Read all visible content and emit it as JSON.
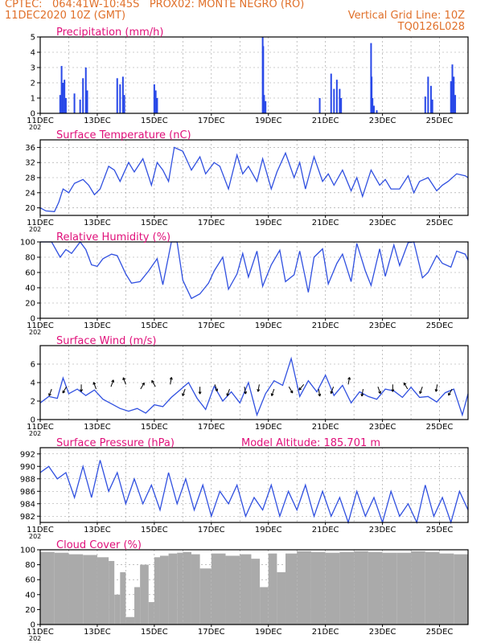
{
  "header": {
    "line1_left": "CPTEC:",
    "coords": "064:41W-10:45S",
    "station": "PROX02: MONTE NEGRO (RO)",
    "line2_left": "11DEC2020 10Z (GMT)",
    "grid_note": "Vertical Grid Line: 10Z",
    "run_id": "TQ0126L028",
    "year_fragment": "202"
  },
  "x_ticks": [
    "11DEC",
    "13DEC",
    "15DEC",
    "17DEC",
    "19DEC",
    "21DEC",
    "23DEC",
    "25DEC"
  ],
  "colors": {
    "line": "#3050e0",
    "bars": "#2848e8",
    "cloud": "#aaaaaa",
    "title": "#e0107a",
    "header": "#e0702a",
    "grid": "#999999"
  },
  "chart_data": [
    {
      "type": "bar",
      "title": "Precipitation (mm/h)",
      "ylim": [
        0,
        5
      ],
      "yticks": [
        "0",
        "1",
        "2",
        "3",
        "4",
        "5"
      ],
      "x": [
        0.7,
        0.75,
        0.8,
        0.85,
        0.9,
        1.2,
        1.4,
        1.5,
        1.6,
        1.65,
        2.7,
        2.8,
        2.9,
        2.95,
        4.0,
        4.05,
        4.1,
        7.8,
        7.82,
        7.85,
        7.9,
        9.8,
        10.2,
        10.3,
        10.4,
        10.5,
        10.55,
        11.6,
        11.62,
        11.65,
        11.7,
        11.8,
        13.5,
        13.6,
        13.7,
        13.75,
        14.4,
        14.45,
        14.5,
        14.55
      ],
      "values": [
        1.2,
        3.1,
        2.0,
        2.2,
        1.0,
        1.3,
        0.9,
        2.3,
        3.0,
        1.5,
        2.3,
        1.9,
        2.4,
        1.2,
        1.9,
        1.5,
        1.0,
        5.0,
        4.4,
        1.2,
        0.8,
        1.0,
        2.6,
        1.6,
        2.2,
        1.6,
        1.0,
        4.6,
        2.4,
        1.0,
        0.5,
        0.2,
        1.1,
        2.4,
        1.8,
        0.9,
        2.1,
        3.2,
        2.4,
        1.2
      ]
    },
    {
      "type": "line",
      "title": "Surface Temperature (nC)",
      "ylim": [
        18,
        38
      ],
      "yticks": [
        "20",
        "24",
        "28",
        "32",
        "36"
      ],
      "x": [
        0,
        0.2,
        0.5,
        0.65,
        0.8,
        1.0,
        1.2,
        1.5,
        1.7,
        1.9,
        2.1,
        2.4,
        2.6,
        2.8,
        3.1,
        3.3,
        3.6,
        3.9,
        4.1,
        4.3,
        4.5,
        4.7,
        5.0,
        5.3,
        5.6,
        5.8,
        6.1,
        6.3,
        6.6,
        6.9,
        7.1,
        7.3,
        7.6,
        7.8,
        8.1,
        8.3,
        8.6,
        8.9,
        9.1,
        9.3,
        9.6,
        9.9,
        10.1,
        10.3,
        10.6,
        10.9,
        11.1,
        11.3,
        11.6,
        11.9,
        12.1,
        12.3,
        12.6,
        12.9,
        13.1,
        13.3,
        13.6,
        13.9,
        14.1,
        14.3,
        14.6,
        14.9,
        15.0
      ],
      "values": [
        20,
        19.2,
        19,
        21.5,
        25,
        24,
        26.5,
        27.5,
        26,
        23.5,
        25,
        31,
        30,
        27,
        32,
        29.5,
        33,
        26,
        32,
        30,
        27,
        36,
        35,
        30,
        33.5,
        29,
        32,
        31,
        25,
        34,
        29,
        31,
        27,
        33,
        25,
        29.5,
        34.5,
        28,
        32,
        25,
        33.5,
        27,
        29,
        26,
        30,
        24.5,
        28,
        23,
        30,
        26,
        27.5,
        25,
        25,
        28.5,
        24,
        27,
        28,
        24.5,
        26,
        27,
        29,
        28.5,
        28
      ]
    },
    {
      "type": "line",
      "title": "Relative Humidity (%)",
      "ylim": [
        0,
        100
      ],
      "yticks": [
        "0",
        "20",
        "40",
        "60",
        "80",
        "100"
      ],
      "x": [
        0,
        0.4,
        0.7,
        0.9,
        1.1,
        1.4,
        1.6,
        1.8,
        2.0,
        2.2,
        2.5,
        2.7,
        3.0,
        3.2,
        3.5,
        3.8,
        4.1,
        4.3,
        4.6,
        4.8,
        5.0,
        5.3,
        5.6,
        5.9,
        6.1,
        6.4,
        6.6,
        6.9,
        7.1,
        7.3,
        7.6,
        7.8,
        8.1,
        8.4,
        8.6,
        8.9,
        9.1,
        9.4,
        9.6,
        9.9,
        10.1,
        10.4,
        10.6,
        10.9,
        11.1,
        11.4,
        11.6,
        11.9,
        12.1,
        12.4,
        12.6,
        12.9,
        13.1,
        13.4,
        13.6,
        13.9,
        14.1,
        14.4,
        14.6,
        14.9,
        15.0
      ],
      "values": [
        100,
        100,
        80,
        90,
        85,
        100,
        90,
        70,
        68,
        78,
        84,
        82,
        58,
        46,
        48,
        62,
        78,
        44,
        100,
        100,
        50,
        26,
        32,
        46,
        62,
        80,
        38,
        58,
        85,
        54,
        88,
        42,
        70,
        89,
        48,
        57,
        88,
        34,
        80,
        91,
        45,
        72,
        84,
        48,
        98,
        62,
        43,
        91,
        55,
        96,
        69,
        99,
        100,
        53,
        60,
        82,
        72,
        67,
        88,
        84,
        76
      ]
    },
    {
      "type": "line",
      "title": "Surface Wind (m/s)",
      "ylim": [
        0,
        8
      ],
      "yticks": [
        "0",
        "2",
        "4",
        "6"
      ],
      "x": [
        0,
        0.3,
        0.6,
        0.8,
        1.0,
        1.3,
        1.6,
        1.9,
        2.2,
        2.5,
        2.8,
        3.1,
        3.4,
        3.7,
        4.0,
        4.3,
        4.6,
        4.9,
        5.2,
        5.5,
        5.8,
        6.1,
        6.4,
        6.7,
        7.0,
        7.3,
        7.6,
        7.9,
        8.2,
        8.5,
        8.8,
        9.1,
        9.4,
        9.7,
        10.0,
        10.3,
        10.6,
        10.9,
        11.2,
        11.5,
        11.8,
        12.1,
        12.4,
        12.7,
        13.0,
        13.3,
        13.6,
        13.9,
        14.2,
        14.5,
        14.8,
        15.0
      ],
      "values": [
        1.8,
        2.5,
        2.3,
        4.5,
        2.8,
        3.3,
        2.6,
        3.2,
        2.2,
        1.7,
        1.2,
        0.9,
        1.2,
        0.7,
        1.6,
        1.4,
        2.4,
        3.2,
        4.0,
        2.3,
        1.1,
        3.6,
        2.0,
        3.0,
        1.8,
        4.0,
        0.5,
        2.8,
        4.2,
        3.7,
        6.6,
        2.5,
        4.2,
        3.0,
        4.8,
        2.6,
        3.7,
        1.8,
        3.0,
        2.5,
        2.2,
        3.3,
        3.1,
        2.4,
        3.5,
        2.4,
        2.5,
        1.9,
        2.9,
        3.3,
        0.5,
        2.8
      ]
    },
    {
      "type": "line",
      "title": "Surface Pressure (hPa)",
      "annotation": "Model Altitude: 185.701 m",
      "ylim": [
        981,
        993
      ],
      "yticks": [
        "982",
        "984",
        "986",
        "988",
        "990",
        "992"
      ],
      "x": [
        0,
        0.3,
        0.6,
        0.9,
        1.2,
        1.5,
        1.8,
        2.1,
        2.4,
        2.7,
        3.0,
        3.3,
        3.6,
        3.9,
        4.2,
        4.5,
        4.8,
        5.1,
        5.4,
        5.7,
        6.0,
        6.3,
        6.6,
        6.9,
        7.2,
        7.5,
        7.8,
        8.1,
        8.4,
        8.7,
        9.0,
        9.3,
        9.6,
        9.9,
        10.2,
        10.5,
        10.8,
        11.1,
        11.4,
        11.7,
        12.0,
        12.3,
        12.6,
        12.9,
        13.2,
        13.5,
        13.8,
        14.1,
        14.4,
        14.7,
        15.0
      ],
      "values": [
        989,
        990,
        988,
        989,
        985,
        990,
        985,
        991,
        986,
        989,
        984,
        988,
        984,
        987,
        983,
        989,
        984,
        988,
        983,
        987,
        982,
        986,
        984,
        987,
        982,
        985,
        983,
        987,
        982,
        986,
        983,
        987,
        982,
        986,
        982,
        985,
        981,
        986,
        982,
        985,
        981,
        986,
        982,
        984,
        981,
        987,
        982,
        985,
        981,
        986,
        983
      ]
    },
    {
      "type": "area",
      "title": "Cloud Cover (%)",
      "ylim": [
        0,
        100
      ],
      "yticks": [
        "0",
        "20",
        "40",
        "60",
        "80",
        "100"
      ],
      "x": [
        0,
        0.5,
        1.0,
        1.5,
        2.0,
        2.4,
        2.6,
        2.8,
        3.0,
        3.3,
        3.5,
        3.8,
        4.0,
        4.2,
        4.5,
        4.8,
        5.0,
        5.3,
        5.6,
        6.0,
        6.5,
        7.0,
        7.4,
        7.7,
        8.0,
        8.3,
        8.6,
        9.0,
        9.5,
        10.0,
        10.5,
        11.0,
        11.5,
        12.0,
        12.5,
        13.0,
        13.5,
        14.0,
        14.5,
        15.0
      ],
      "values": [
        97,
        96,
        94,
        93,
        90,
        85,
        40,
        70,
        10,
        50,
        80,
        30,
        90,
        92,
        95,
        96,
        97,
        94,
        75,
        95,
        92,
        94,
        88,
        50,
        95,
        70,
        95,
        98,
        97,
        96,
        97,
        98,
        97,
        96,
        96,
        98,
        97,
        95,
        94,
        93
      ]
    }
  ]
}
